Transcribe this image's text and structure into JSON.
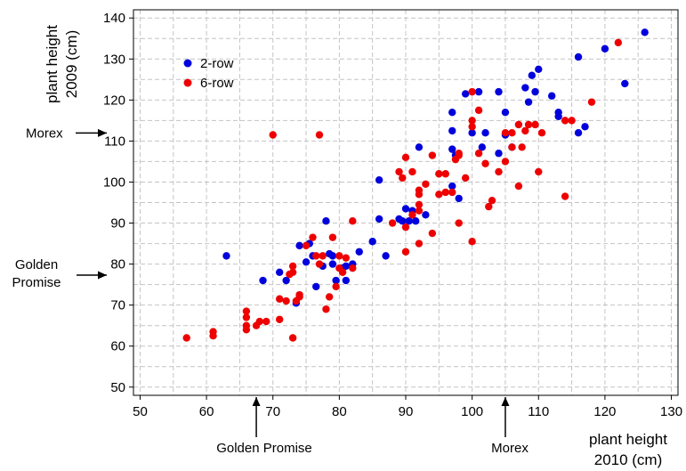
{
  "chart_data": {
    "type": "scatter",
    "xlabel": [
      "plant height",
      "2010 (cm)"
    ],
    "ylabel": [
      "plant height",
      "2009 (cm)"
    ],
    "xlim": [
      49,
      131
    ],
    "ylim": [
      48,
      142
    ],
    "xticks": [
      50,
      60,
      70,
      80,
      90,
      100,
      110,
      120,
      130
    ],
    "yticks": [
      50,
      60,
      70,
      80,
      90,
      100,
      110,
      120,
      130,
      140
    ],
    "grid": true,
    "legend_position": "top-left",
    "series": [
      {
        "name": "2-row",
        "color": "#0000dd",
        "points": [
          [
            63,
            82
          ],
          [
            68.5,
            76
          ],
          [
            71,
            78
          ],
          [
            72,
            76
          ],
          [
            73.5,
            70.5
          ],
          [
            74,
            84.5
          ],
          [
            75,
            80.5
          ],
          [
            75.5,
            85
          ],
          [
            76,
            82
          ],
          [
            76.5,
            74.5
          ],
          [
            77.5,
            79.5
          ],
          [
            78,
            90.5
          ],
          [
            78.5,
            82.5
          ],
          [
            79,
            82
          ],
          [
            79,
            80
          ],
          [
            79.5,
            76
          ],
          [
            80.5,
            79
          ],
          [
            81,
            79.5
          ],
          [
            81,
            76
          ],
          [
            82,
            80
          ],
          [
            83,
            83
          ],
          [
            85,
            85.5
          ],
          [
            86,
            91
          ],
          [
            86,
            100.5
          ],
          [
            87,
            82
          ],
          [
            89,
            91
          ],
          [
            89.5,
            90.5
          ],
          [
            90,
            93.5
          ],
          [
            90.5,
            90.5
          ],
          [
            91,
            93
          ],
          [
            91.5,
            90.5
          ],
          [
            92,
            108.5
          ],
          [
            93,
            92
          ],
          [
            97,
            117
          ],
          [
            97,
            112.5
          ],
          [
            97,
            108
          ],
          [
            97,
            99
          ],
          [
            97.5,
            106.5
          ],
          [
            98,
            96
          ],
          [
            99,
            121.5
          ],
          [
            100,
            112
          ],
          [
            101,
            122
          ],
          [
            101.5,
            108.5
          ],
          [
            102,
            112
          ],
          [
            104,
            122
          ],
          [
            104,
            107
          ],
          [
            105,
            117
          ],
          [
            105,
            111.5
          ],
          [
            106,
            108.5
          ],
          [
            108,
            123
          ],
          [
            108.5,
            119.5
          ],
          [
            109,
            126
          ],
          [
            109.5,
            122
          ],
          [
            110,
            127.5
          ],
          [
            112,
            121
          ],
          [
            113,
            116
          ],
          [
            113,
            117
          ],
          [
            116,
            130.5
          ],
          [
            116,
            112
          ],
          [
            117,
            113.5
          ],
          [
            120,
            132.5
          ],
          [
            123,
            124
          ],
          [
            126,
            136.5
          ]
        ]
      },
      {
        "name": "6-row",
        "color": "#ee0000",
        "points": [
          [
            57,
            62
          ],
          [
            61,
            62.5
          ],
          [
            61,
            63.5
          ],
          [
            66,
            64
          ],
          [
            66,
            65
          ],
          [
            66,
            67
          ],
          [
            66,
            68.5
          ],
          [
            67.5,
            65
          ],
          [
            68,
            66
          ],
          [
            69,
            66
          ],
          [
            70,
            111.5
          ],
          [
            71,
            66.5
          ],
          [
            71,
            71.5
          ],
          [
            72,
            71
          ],
          [
            72.5,
            77.5
          ],
          [
            73,
            62
          ],
          [
            73,
            78
          ],
          [
            73,
            79.5
          ],
          [
            73.5,
            71
          ],
          [
            74,
            72
          ],
          [
            74,
            72.5
          ],
          [
            75,
            84.5
          ],
          [
            76,
            86.5
          ],
          [
            76.5,
            82
          ],
          [
            77,
            111.5
          ],
          [
            77,
            80
          ],
          [
            77.5,
            82
          ],
          [
            78,
            69
          ],
          [
            78.5,
            72
          ],
          [
            79,
            86.5
          ],
          [
            79.5,
            74.5
          ],
          [
            80,
            82
          ],
          [
            80,
            79
          ],
          [
            80.5,
            78
          ],
          [
            81,
            81.5
          ],
          [
            82,
            79
          ],
          [
            82,
            90.5
          ],
          [
            88,
            90
          ],
          [
            89,
            102.5
          ],
          [
            89.5,
            101
          ],
          [
            90,
            89
          ],
          [
            90,
            83
          ],
          [
            90,
            106
          ],
          [
            91,
            92
          ],
          [
            91,
            102.5
          ],
          [
            92,
            98
          ],
          [
            92,
            97
          ],
          [
            92,
            94.5
          ],
          [
            92,
            93
          ],
          [
            92,
            85
          ],
          [
            93,
            99.5
          ],
          [
            94,
            87.5
          ],
          [
            94,
            106.5
          ],
          [
            95,
            102
          ],
          [
            95,
            97
          ],
          [
            96,
            102
          ],
          [
            96,
            97.5
          ],
          [
            97,
            97.5
          ],
          [
            97.5,
            105.5
          ],
          [
            98,
            106.5
          ],
          [
            98,
            107
          ],
          [
            98,
            90
          ],
          [
            99,
            101
          ],
          [
            100,
            122
          ],
          [
            100,
            115
          ],
          [
            100,
            113.5
          ],
          [
            100,
            85.5
          ],
          [
            101,
            117.5
          ],
          [
            101,
            107
          ],
          [
            102,
            104.5
          ],
          [
            102.5,
            94
          ],
          [
            103,
            95.5
          ],
          [
            104,
            102.5
          ],
          [
            105,
            105
          ],
          [
            105,
            112
          ],
          [
            106,
            108.5
          ],
          [
            106,
            112
          ],
          [
            107,
            114
          ],
          [
            107,
            99
          ],
          [
            107.5,
            108.5
          ],
          [
            108,
            112.5
          ],
          [
            108.5,
            114
          ],
          [
            109.5,
            114
          ],
          [
            110,
            102.5
          ],
          [
            110.5,
            112
          ],
          [
            114,
            115
          ],
          [
            114,
            96.5
          ],
          [
            115,
            115
          ],
          [
            118,
            119.5
          ],
          [
            122,
            134
          ]
        ]
      }
    ],
    "annotations": {
      "morex_y": {
        "label": "Morex",
        "value": 110
      },
      "golden_promise_y": {
        "label": "Golden\nPromise",
        "value": 78
      },
      "golden_promise_x": {
        "label": "Golden Promise",
        "value": 67.5
      },
      "morex_x": {
        "label": "Morex",
        "value": 105
      }
    }
  }
}
